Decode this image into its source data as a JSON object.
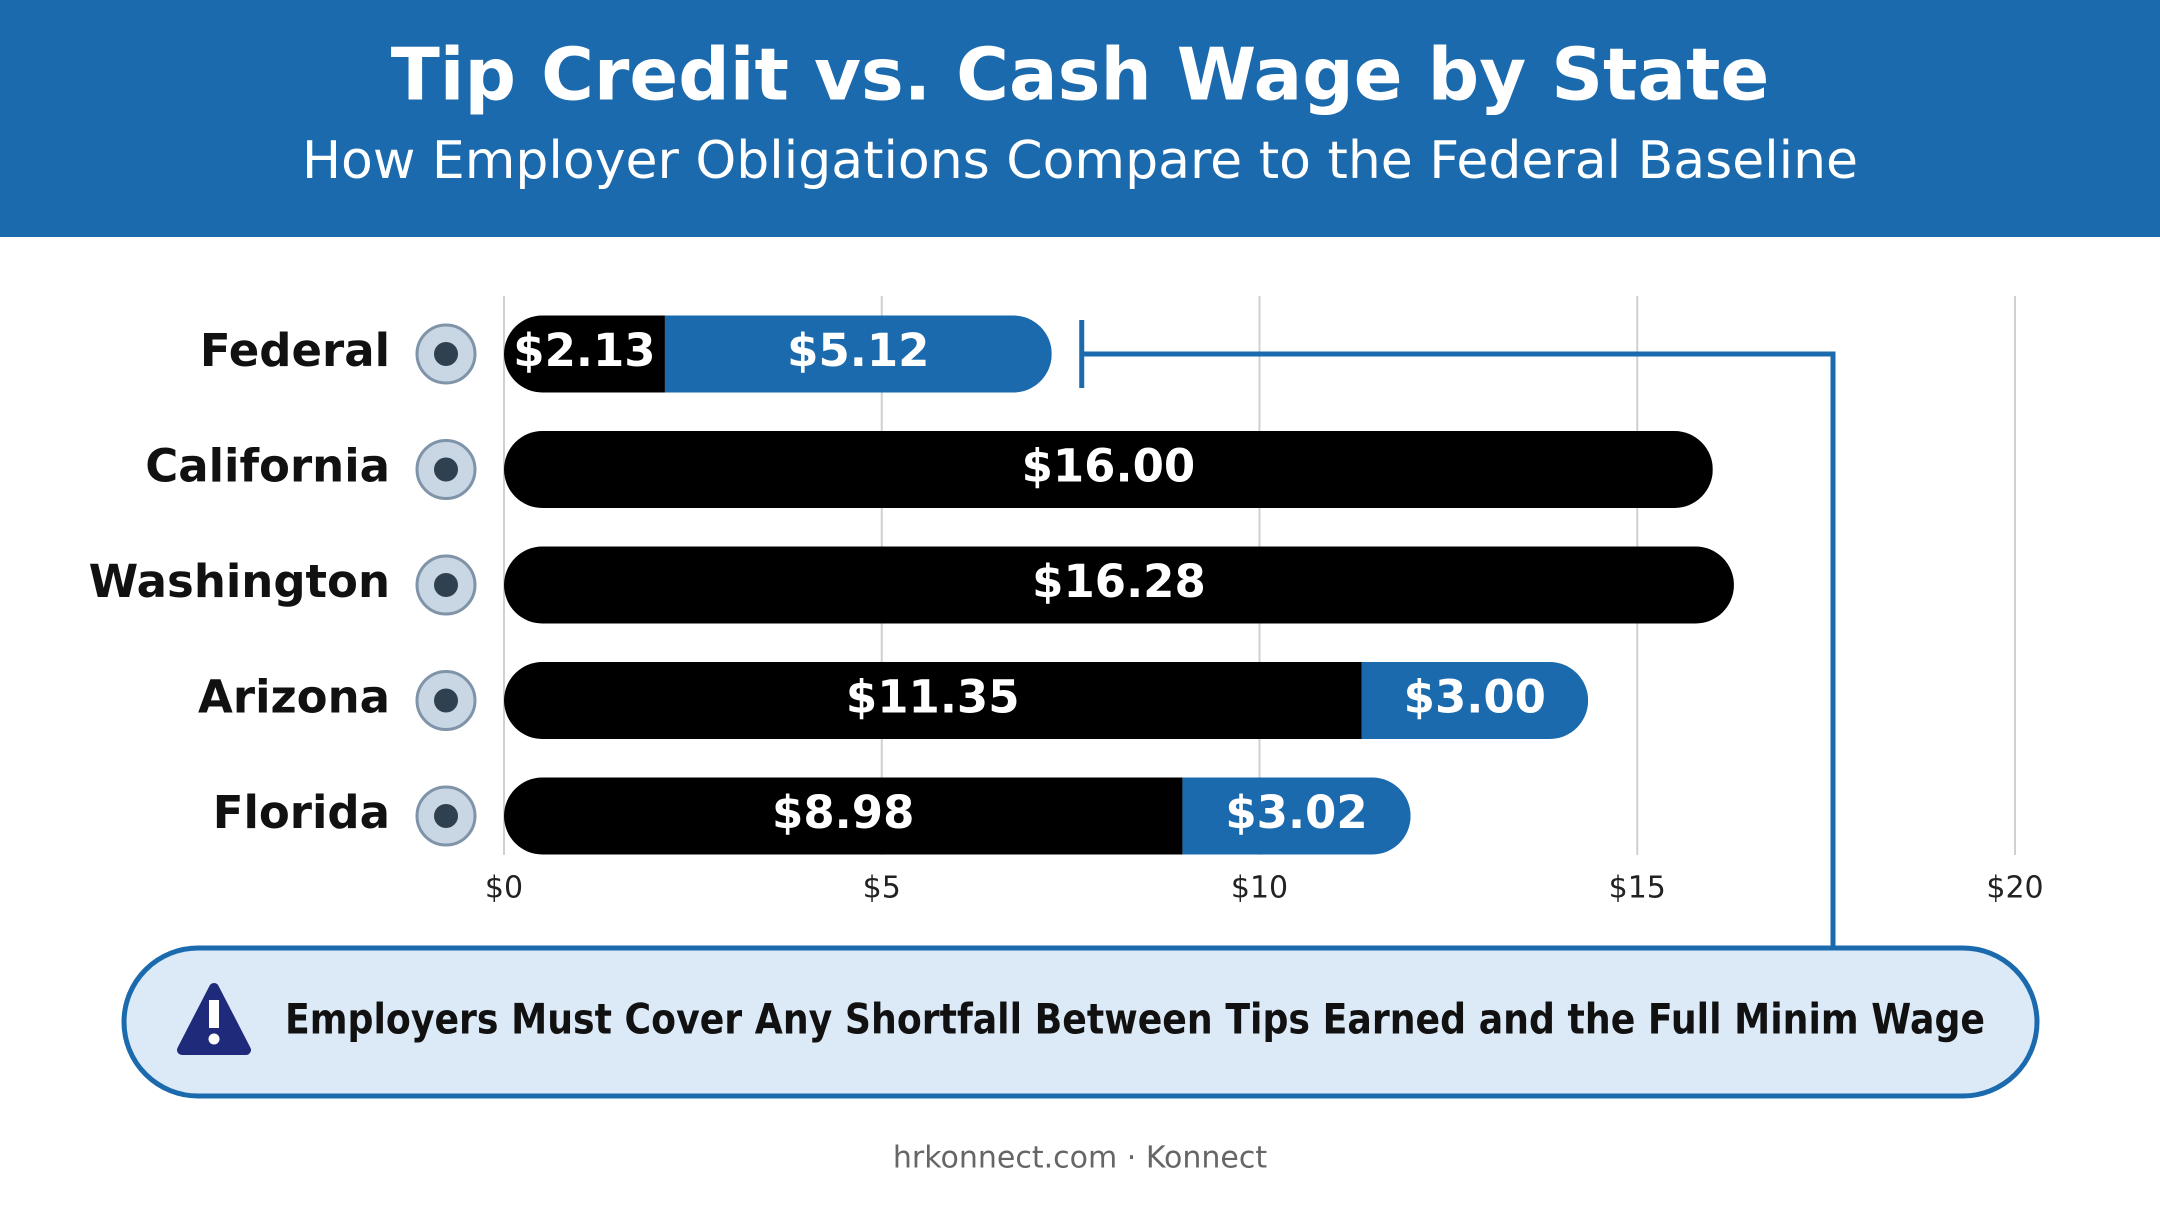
{
  "chart_data": {
    "type": "stacked-bar-horizontal",
    "title": "Tip Credit vs. Cash Wage by State",
    "subtitle": "How Employer Obligations Compare to the Federal Baseline",
    "categories": [
      "Federal",
      "California",
      "Washington",
      "Arizona",
      "Florida"
    ],
    "series": [
      {
        "color": "#000000",
        "values": [
          2.13,
          16.0,
          16.28,
          11.35,
          8.98
        ],
        "value_labels": [
          "$2.13",
          "$16.00",
          "$16.28",
          "$11.35",
          "$8.98"
        ]
      },
      {
        "color": "#1a6aad",
        "values": [
          5.12,
          null,
          null,
          3.0,
          3.02
        ],
        "value_labels": [
          "$5.12",
          null,
          null,
          "$3.00",
          "$3.02"
        ]
      }
    ],
    "xlim": [
      0,
      20
    ],
    "xticks": [
      {
        "value": 0,
        "label": "$0"
      },
      {
        "value": 5,
        "label": "$5"
      },
      {
        "value": 10,
        "label": "$10"
      },
      {
        "value": 15,
        "label": "$15"
      },
      {
        "value": 20,
        "label": "$20"
      }
    ],
    "grid": true,
    "annotation": "Employers Must Cover Any Shortfall Between Tips Earned and the Full Minim Wage",
    "footer": "hrkonnect.com · Konnect"
  }
}
